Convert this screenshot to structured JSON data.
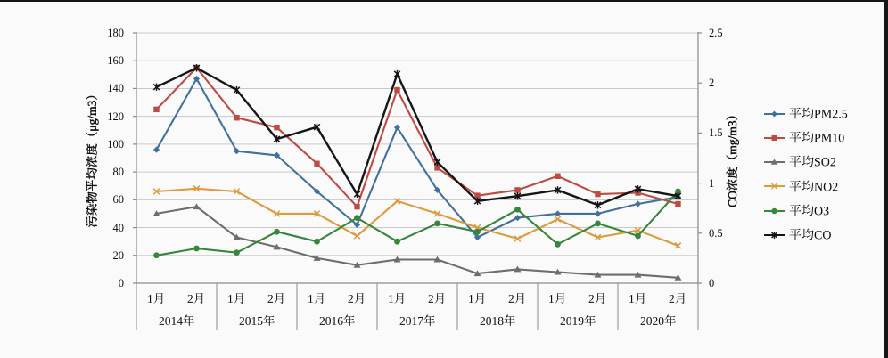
{
  "page": {
    "background": "#fbfafa",
    "frame_top_color": "#161616",
    "frame_right_color": "#161616"
  },
  "chart_data": {
    "type": "line",
    "title": "",
    "grid": true,
    "legend_position": "right",
    "left_axis": {
      "title": "污染物平均浓度（μg/m3）",
      "min": 0,
      "max": 180,
      "step": 20,
      "tick_labels": [
        "0",
        "20",
        "40",
        "60",
        "80",
        "100",
        "120",
        "140",
        "160",
        "180"
      ]
    },
    "right_axis": {
      "title": "CO浓度（mg/m3）",
      "min": 0,
      "max": 2.5,
      "step": 0.5,
      "tick_labels": [
        "0",
        "0.5",
        "1",
        "1.5",
        "2",
        "2.5"
      ]
    },
    "x_axis": {
      "month_labels": [
        "1月",
        "2月"
      ],
      "groups": [
        {
          "year": "2014年",
          "months": [
            "1月",
            "2月"
          ]
        },
        {
          "year": "2015年",
          "months": [
            "1月",
            "2月"
          ]
        },
        {
          "year": "2016年",
          "months": [
            "1月",
            "2月"
          ]
        },
        {
          "year": "2017年",
          "months": [
            "1月",
            "2月"
          ]
        },
        {
          "year": "2018年",
          "months": [
            "1月",
            "2月"
          ]
        },
        {
          "year": "2019年",
          "months": [
            "1月",
            "2月"
          ]
        },
        {
          "year": "2020年",
          "months": [
            "1月",
            "2月"
          ]
        }
      ]
    },
    "series": [
      {
        "name": "平均PM2.5",
        "axis": "left",
        "color": "#41709f",
        "marker": "diamond",
        "values": [
          96,
          147,
          95,
          92,
          66,
          42,
          112,
          67,
          33,
          47,
          50,
          50,
          57,
          62
        ]
      },
      {
        "name": "平均PM10",
        "axis": "left",
        "color": "#bd4b43",
        "marker": "square",
        "values": [
          125,
          155,
          119,
          112,
          86,
          55,
          139,
          83,
          63,
          67,
          77,
          64,
          65,
          57
        ]
      },
      {
        "name": "平均SO2",
        "axis": "left",
        "color": "#6d6d6d",
        "marker": "triangle",
        "values": [
          50,
          55,
          33,
          26,
          18,
          13,
          17,
          17,
          7,
          10,
          8,
          6,
          6,
          4
        ]
      },
      {
        "name": "平均NO2",
        "axis": "left",
        "color": "#dc9b3c",
        "marker": "x",
        "values": [
          66,
          68,
          66,
          50,
          50,
          34,
          59,
          50,
          40,
          32,
          46,
          33,
          38,
          27
        ]
      },
      {
        "name": "平均O3",
        "axis": "left",
        "color": "#35873b",
        "marker": "circle",
        "values": [
          20,
          25,
          22,
          37,
          30,
          47,
          30,
          43,
          37,
          53,
          28,
          43,
          34,
          66
        ]
      },
      {
        "name": "平均CO",
        "axis": "right",
        "color": "#151515",
        "marker": "star",
        "values": [
          1.96,
          2.15,
          1.93,
          1.44,
          1.56,
          0.89,
          2.09,
          1.21,
          0.82,
          0.87,
          0.93,
          0.78,
          0.94,
          0.87
        ]
      }
    ]
  }
}
